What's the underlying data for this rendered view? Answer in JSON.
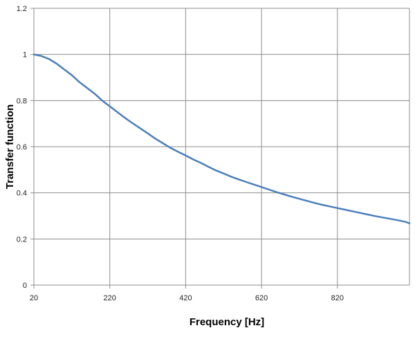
{
  "chart_data": {
    "type": "line",
    "title": "",
    "xlabel": "Frequency [Hz]",
    "ylabel": "Transfer function",
    "xlim": [
      20,
      1010
    ],
    "ylim": [
      0,
      1.2
    ],
    "x_ticks": [
      20,
      220,
      420,
      620,
      820
    ],
    "y_ticks": [
      0,
      0.2,
      0.4,
      0.6,
      0.8,
      1,
      1.2
    ],
    "x_tick_labels": [
      "20",
      "220",
      "420",
      "620",
      "820"
    ],
    "y_tick_labels": [
      "0",
      "0.2",
      "0.4",
      "0.6",
      "0.8",
      "1",
      "1.2"
    ],
    "grid": true,
    "legend": "none",
    "series": [
      {
        "color": "#4a7ebb",
        "x": [
          20,
          40,
          60,
          80,
          100,
          120,
          140,
          160,
          180,
          200,
          220,
          240,
          260,
          280,
          300,
          320,
          340,
          360,
          380,
          400,
          420,
          440,
          460,
          480,
          500,
          520,
          540,
          560,
          580,
          600,
          620,
          640,
          660,
          680,
          700,
          720,
          740,
          760,
          780,
          800,
          820,
          840,
          860,
          880,
          900,
          920,
          940,
          960,
          980,
          1000,
          1010
        ],
        "y": [
          1.0,
          0.993,
          0.98,
          0.96,
          0.935,
          0.91,
          0.88,
          0.855,
          0.83,
          0.8,
          0.775,
          0.75,
          0.725,
          0.702,
          0.68,
          0.658,
          0.635,
          0.615,
          0.595,
          0.578,
          0.562,
          0.545,
          0.53,
          0.513,
          0.497,
          0.484,
          0.47,
          0.458,
          0.447,
          0.436,
          0.425,
          0.414,
          0.403,
          0.393,
          0.383,
          0.374,
          0.365,
          0.356,
          0.348,
          0.341,
          0.334,
          0.327,
          0.32,
          0.313,
          0.306,
          0.299,
          0.293,
          0.287,
          0.281,
          0.274,
          0.268
        ]
      }
    ]
  }
}
